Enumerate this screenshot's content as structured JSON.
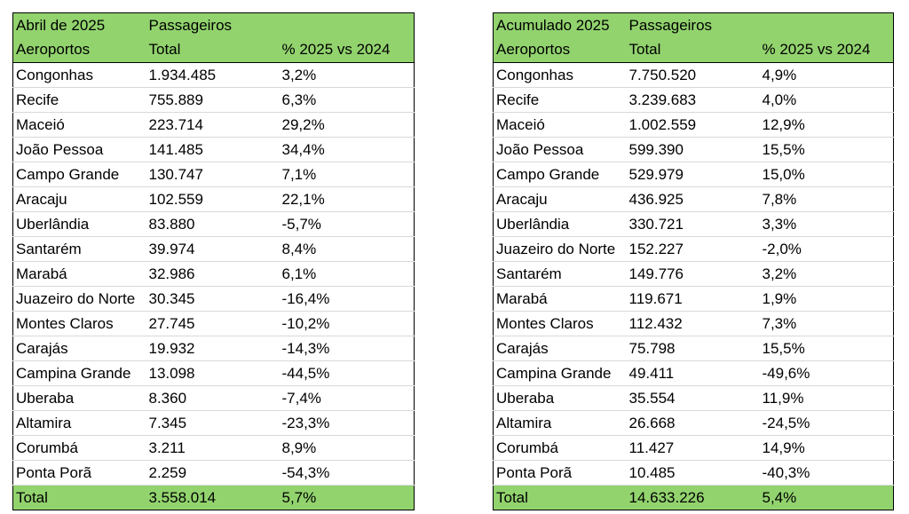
{
  "tables": [
    {
      "title": "Abril de 2025",
      "title_col2": "Passageiros",
      "headers": [
        "Aeroportos",
        "Total",
        "% 2025 vs 2024"
      ],
      "rows": [
        [
          "Congonhas",
          "1.934.485",
          "3,2%"
        ],
        [
          "Recife",
          "755.889",
          "6,3%"
        ],
        [
          "Maceió",
          "223.714",
          "29,2%"
        ],
        [
          "João Pessoa",
          "141.485",
          "34,4%"
        ],
        [
          "Campo Grande",
          "130.747",
          "7,1%"
        ],
        [
          "Aracaju",
          "102.559",
          "22,1%"
        ],
        [
          "Uberlândia",
          "83.880",
          "-5,7%"
        ],
        [
          "Santarém",
          "39.974",
          "8,4%"
        ],
        [
          "Marabá",
          "32.986",
          "6,1%"
        ],
        [
          "Juazeiro do Norte",
          "30.345",
          "-16,4%"
        ],
        [
          "Montes Claros",
          "27.745",
          "-10,2%"
        ],
        [
          "Carajás",
          "19.932",
          "-14,3%"
        ],
        [
          "Campina Grande",
          "13.098",
          "-44,5%"
        ],
        [
          "Uberaba",
          "8.360",
          "-7,4%"
        ],
        [
          "Altamira",
          "7.345",
          "-23,3%"
        ],
        [
          "Corumbá",
          "3.211",
          "8,9%"
        ],
        [
          "Ponta Porã",
          "2.259",
          "-54,3%"
        ]
      ],
      "total": [
        "Total",
        "3.558.014",
        "5,7%"
      ]
    },
    {
      "title": "Acumulado 2025",
      "title_col2": "Passageiros",
      "headers": [
        "Aeroportos",
        "Total",
        "% 2025 vs 2024"
      ],
      "rows": [
        [
          "Congonhas",
          "7.750.520",
          "4,9%"
        ],
        [
          "Recife",
          "3.239.683",
          "4,0%"
        ],
        [
          "Maceió",
          "1.002.559",
          "12,9%"
        ],
        [
          "João Pessoa",
          "599.390",
          "15,5%"
        ],
        [
          "Campo Grande",
          "529.979",
          "15,0%"
        ],
        [
          "Aracaju",
          "436.925",
          "7,8%"
        ],
        [
          "Uberlândia",
          "330.721",
          "3,3%"
        ],
        [
          "Juazeiro do Norte",
          "152.227",
          "-2,0%"
        ],
        [
          "Santarém",
          "149.776",
          "3,2%"
        ],
        [
          "Marabá",
          "119.671",
          "1,9%"
        ],
        [
          "Montes Claros",
          "112.432",
          "7,3%"
        ],
        [
          "Carajás",
          "75.798",
          "15,5%"
        ],
        [
          "Campina Grande",
          "49.411",
          "-49,6%"
        ],
        [
          "Uberaba",
          "35.554",
          "11,9%"
        ],
        [
          "Altamira",
          "26.668",
          "-24,5%"
        ],
        [
          "Corumbá",
          "11.427",
          "14,9%"
        ],
        [
          "Ponta Porã",
          "10.485",
          "-40,3%"
        ]
      ],
      "total": [
        "Total",
        "14.633.226",
        "5,4%"
      ]
    }
  ]
}
